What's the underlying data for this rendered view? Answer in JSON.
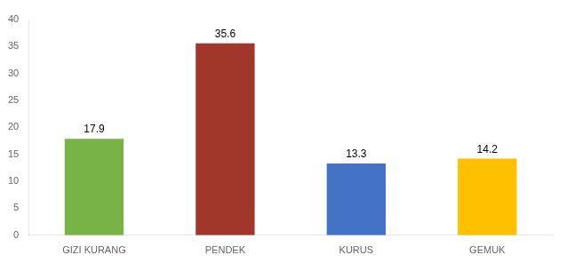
{
  "chart_data": {
    "type": "bar",
    "categories": [
      "GIZI KURANG",
      "PENDEK",
      "KURUS",
      "GEMUK"
    ],
    "values": [
      17.9,
      35.6,
      13.3,
      14.2
    ],
    "colors": [
      "#77B346",
      "#A0372A",
      "#4472C4",
      "#FFC000"
    ],
    "ylim": [
      0,
      40
    ],
    "yticks": [
      0,
      5,
      10,
      15,
      20,
      25,
      30,
      35,
      40
    ],
    "grid": false,
    "legend": false,
    "data_labels": true
  }
}
